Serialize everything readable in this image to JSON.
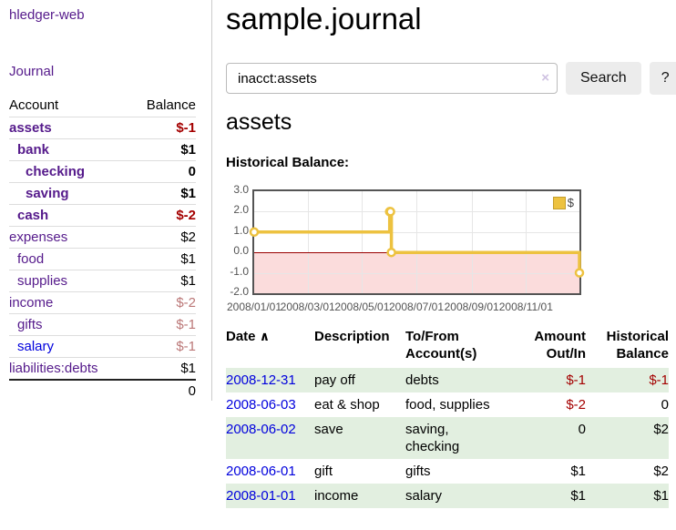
{
  "app": {
    "title": "hledger-web"
  },
  "sidebar": {
    "journal_link": "Journal",
    "accounts_table": {
      "account_header": "Account",
      "balance_header": "Balance",
      "rows": [
        {
          "account": "assets",
          "indent": 1,
          "bold": true,
          "link_color": "purple",
          "balance": "$-1",
          "balance_style": "negative"
        },
        {
          "account": "bank",
          "indent": 2,
          "bold": true,
          "link_color": "purple",
          "balance": "$1",
          "balance_style": "normal"
        },
        {
          "account": "checking",
          "indent": 3,
          "bold": true,
          "link_color": "purple",
          "balance": "0",
          "balance_style": "normal"
        },
        {
          "account": "saving",
          "indent": 3,
          "bold": true,
          "link_color": "purple",
          "balance": "$1",
          "balance_style": "normal"
        },
        {
          "account": "cash",
          "indent": 2,
          "bold": true,
          "link_color": "purple",
          "balance": "$-2",
          "balance_style": "negative"
        },
        {
          "account": "expenses",
          "indent": 1,
          "bold": false,
          "link_color": "purple",
          "balance": "$2",
          "balance_style": "normal"
        },
        {
          "account": "food",
          "indent": 2,
          "bold": false,
          "link_color": "purple",
          "balance": "$1",
          "balance_style": "normal"
        },
        {
          "account": "supplies",
          "indent": 2,
          "bold": false,
          "link_color": "purple",
          "balance": "$1",
          "balance_style": "normal"
        },
        {
          "account": "income",
          "indent": 1,
          "bold": false,
          "link_color": "purple",
          "balance": "$-2",
          "balance_style": "dimmed-negative"
        },
        {
          "account": "gifts",
          "indent": 2,
          "bold": false,
          "link_color": "purple",
          "balance": "$-1",
          "balance_style": "dimmed-negative"
        },
        {
          "account": "salary",
          "indent": 2,
          "bold": false,
          "link_color": "blue",
          "balance": "$-1",
          "balance_style": "dimmed-negative"
        },
        {
          "account": "liabilities:debts",
          "indent": 1,
          "bold": false,
          "link_color": "purple",
          "balance": "$1",
          "balance_style": "normal"
        }
      ],
      "total": "0"
    }
  },
  "main": {
    "title": "sample.journal",
    "search": {
      "value": "inacct:assets",
      "clear_icon": "×",
      "button_label": "Search",
      "help_label": "?"
    },
    "account_heading": "assets",
    "register_table": {
      "headers": {
        "date": "Date",
        "sort_icon": "∧",
        "description": "Description",
        "accounts": "To/From Account(s)",
        "amount": "Amount Out/In",
        "balance": "Historical Balance"
      },
      "rows": [
        {
          "date": "2008-12-31",
          "description": "pay off",
          "accounts": "debts",
          "amount": "$-1",
          "amount_negative": true,
          "balance": "$-1",
          "balance_negative": true,
          "highlight": true
        },
        {
          "date": "2008-06-03",
          "description": "eat & shop",
          "accounts": "food, supplies",
          "amount": "$-2",
          "amount_negative": true,
          "balance": "0",
          "balance_negative": false,
          "highlight": false
        },
        {
          "date": "2008-06-02",
          "description": "save",
          "accounts": "saving, checking",
          "amount": "0",
          "amount_negative": false,
          "balance": "$2",
          "balance_negative": false,
          "highlight": true
        },
        {
          "date": "2008-06-01",
          "description": "gift",
          "accounts": "gifts",
          "amount": "$1",
          "amount_negative": false,
          "balance": "$2",
          "balance_negative": false,
          "highlight": false
        },
        {
          "date": "2008-01-01",
          "description": "income",
          "accounts": "salary",
          "amount": "$1",
          "amount_negative": false,
          "balance": "$1",
          "balance_negative": false,
          "highlight": true
        }
      ]
    }
  },
  "chart_data": {
    "type": "line",
    "title": "Historical Balance:",
    "step": true,
    "series": [
      {
        "name": "$",
        "color": "#edc240",
        "points": [
          [
            "2008-01-01",
            1
          ],
          [
            "2008-06-01",
            2
          ],
          [
            "2008-06-02",
            2
          ],
          [
            "2008-06-03",
            0
          ],
          [
            "2008-12-31",
            -1
          ]
        ]
      }
    ],
    "x_range": [
      "2008-01-01",
      "2008-12-31"
    ],
    "x_ticks": [
      {
        "date": "2008-01-01",
        "label": "2008/01/01"
      },
      {
        "date": "2008-03-01",
        "label": "2008/03/01"
      },
      {
        "date": "2008-05-01",
        "label": "2008/05/01"
      },
      {
        "date": "2008-07-01",
        "label": "2008/07/01"
      },
      {
        "date": "2008-09-01",
        "label": "2008/09/01"
      },
      {
        "date": "2008-11-01",
        "label": "2008/11/01"
      }
    ],
    "y_ticks": [
      {
        "value": 3,
        "label": "3.0"
      },
      {
        "value": 2,
        "label": "2.0"
      },
      {
        "value": 1,
        "label": "1.0"
      },
      {
        "value": 0,
        "label": "0.0"
      },
      {
        "value": -1,
        "label": "-1.0"
      },
      {
        "value": -2,
        "label": "-2.0"
      }
    ],
    "ylim": [
      -2,
      3
    ],
    "grid": true,
    "negative_region_shaded": true,
    "legend": {
      "label": "$",
      "position": "top-right"
    }
  },
  "colors": {
    "purple_link": "#551a8b",
    "blue_link": "#0000dd",
    "negative": "#a40000",
    "dimmed_negative": "#bb7777",
    "row_highlight": "#e2efe0",
    "series_gold": "#edc240",
    "negative_region_fill": "#fbdcdc",
    "zero_line": "#990000",
    "chart_border": "#545454"
  }
}
